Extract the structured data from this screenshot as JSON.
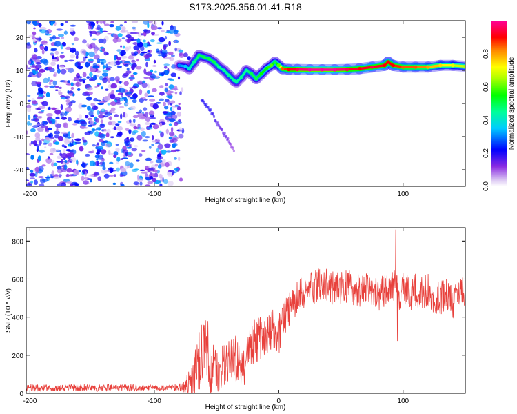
{
  "title": "S173.2025.356.01.41.R18",
  "chart_data": [
    {
      "type": "heatmap",
      "xlabel": "Height of straight line (km)",
      "ylabel": "Frequency (Hz)",
      "xlim": [
        -203,
        150
      ],
      "ylim": [
        -25,
        25
      ],
      "xticks": [
        -200,
        -100,
        0,
        100
      ],
      "xtick_labels": [
        "-200",
        "-100",
        "0",
        "100"
      ],
      "yticks": [
        -20,
        -10,
        0,
        10,
        20
      ],
      "ytick_labels": [
        "-20",
        "-10",
        "0",
        "10",
        "20"
      ],
      "grid": false,
      "colorbar": {
        "label": "Normalized spectral amplitude",
        "range": [
          0,
          1
        ],
        "ticks": [
          0,
          0.2,
          0.4,
          0.6,
          0.8
        ],
        "tick_labels": [
          "0.0",
          "0.2",
          "0.4",
          "0.6",
          "0.8"
        ]
      },
      "noise_region": {
        "x": [
          -203,
          -78
        ],
        "y": [
          -25,
          25
        ],
        "amplitude": [
          0.1,
          0.3
        ]
      },
      "ridge": {
        "x": [
          -80,
          -75,
          -72,
          -68,
          -64,
          -60,
          -56,
          -52,
          -48,
          -44,
          -40,
          -36,
          -34,
          -30,
          -26,
          -22,
          -18,
          -14,
          -10,
          -6,
          -3,
          0,
          3,
          8,
          15,
          25,
          35,
          45,
          55,
          65,
          75,
          85,
          88,
          92,
          100,
          110,
          120,
          130,
          140,
          150
        ],
        "y": [
          11.5,
          11.2,
          10.5,
          12.5,
          14.5,
          14.0,
          13.5,
          12.5,
          11.0,
          10.0,
          8.5,
          7.0,
          6.5,
          8.0,
          10.0,
          9.0,
          7.5,
          9.0,
          10.5,
          11.5,
          12.5,
          11.5,
          10.5,
          10.3,
          10.3,
          10.2,
          10.2,
          10.2,
          10.3,
          10.5,
          11.0,
          11.5,
          12.5,
          11.5,
          11.0,
          11.0,
          11.0,
          11.5,
          11.5,
          11.2
        ],
        "amplitude": [
          0.3,
          0.35,
          0.4,
          0.45,
          0.5,
          0.5,
          0.5,
          0.5,
          0.45,
          0.45,
          0.45,
          0.45,
          0.45,
          0.45,
          0.45,
          0.5,
          0.5,
          0.55,
          0.55,
          0.6,
          0.5,
          0.6,
          0.85,
          0.9,
          0.95,
          1.0,
          1.0,
          1.0,
          0.95,
          0.9,
          0.95,
          0.9,
          0.9,
          0.9,
          0.85,
          0.85,
          0.8,
          0.75,
          0.7,
          0.65
        ]
      },
      "streak": {
        "x": [
          -62,
          -55,
          -48,
          -42,
          -36
        ],
        "y": [
          1,
          -2,
          -7,
          -10,
          -14
        ],
        "amplitude": [
          0.2,
          0.2,
          0.15,
          0.15,
          0.1
        ]
      }
    },
    {
      "type": "line",
      "xlabel": "Height of straight line (km)",
      "ylabel": "SNR (10 * v/v)",
      "xlim": [
        -203,
        150
      ],
      "ylim": [
        0,
        870
      ],
      "xticks": [
        -200,
        -100,
        0,
        100
      ],
      "xtick_labels": [
        "-200",
        "-100",
        "0",
        "100"
      ],
      "yticks": [
        0,
        200,
        400,
        600,
        800
      ],
      "ytick_labels": [
        "0",
        "200",
        "400",
        "600",
        "800"
      ],
      "grid": false,
      "color": "#e8413c",
      "x": [
        -203,
        -190,
        -180,
        -170,
        -160,
        -150,
        -140,
        -130,
        -120,
        -110,
        -100,
        -90,
        -80,
        -75,
        -70,
        -65,
        -62,
        -60,
        -57,
        -55,
        -52,
        -50,
        -45,
        -40,
        -35,
        -30,
        -27,
        -25,
        -20,
        -15,
        -12,
        -10,
        -8,
        -5,
        -3,
        0,
        2,
        5,
        8,
        10,
        15,
        20,
        25,
        30,
        35,
        40,
        45,
        50,
        55,
        60,
        65,
        70,
        75,
        80,
        85,
        90,
        92,
        94,
        96,
        100,
        105,
        110,
        115,
        120,
        125,
        130,
        135,
        140,
        145,
        150
      ],
      "y": [
        30,
        28,
        25,
        28,
        30,
        25,
        28,
        30,
        28,
        30,
        28,
        30,
        30,
        40,
        70,
        140,
        230,
        300,
        160,
        110,
        140,
        110,
        150,
        170,
        190,
        120,
        150,
        200,
        270,
        300,
        250,
        330,
        300,
        350,
        320,
        310,
        330,
        400,
        430,
        460,
        500,
        530,
        540,
        560,
        570,
        580,
        540,
        560,
        560,
        550,
        540,
        540,
        550,
        520,
        540,
        560,
        560,
        620,
        500,
        560,
        520,
        540,
        520,
        540,
        500,
        500,
        520,
        480,
        500,
        540
      ],
      "noise_amplitude": [
        20,
        20,
        15,
        20,
        20,
        20,
        20,
        15,
        20,
        15,
        15,
        15,
        20,
        40,
        90,
        170,
        190,
        200,
        140,
        120,
        130,
        110,
        120,
        110,
        120,
        110,
        110,
        110,
        120,
        120,
        100,
        110,
        110,
        100,
        100,
        110,
        100,
        100,
        100,
        90,
        90,
        90,
        90,
        90,
        90,
        90,
        90,
        90,
        90,
        90,
        90,
        90,
        90,
        90,
        90,
        90,
        90,
        90,
        90,
        90,
        90,
        90,
        90,
        90,
        90,
        90,
        90,
        90,
        90,
        90
      ],
      "spikes": [
        {
          "x": 94,
          "y": 860
        },
        {
          "x": 95.5,
          "y": 275
        },
        {
          "x": -62,
          "y": 360
        },
        {
          "x": -57,
          "y": 380
        }
      ]
    }
  ]
}
